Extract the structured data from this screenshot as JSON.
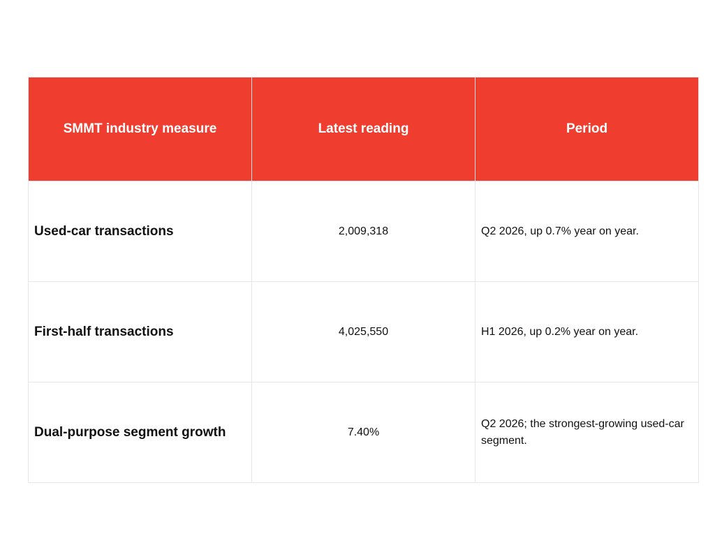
{
  "table": {
    "headers": [
      "SMMT industry measure",
      "Latest reading",
      "Period"
    ],
    "rows": [
      {
        "measure": "Used-car transactions",
        "reading": "2,009,318",
        "period": "Q2 2026, up 0.7% year on year."
      },
      {
        "measure": "First-half transactions",
        "reading": "4,025,550",
        "period": "H1 2026, up 0.2% year on year."
      },
      {
        "measure": "Dual-purpose segment growth",
        "reading": "7.40%",
        "period": "Q2 2026; the strongest-growing used-car segment."
      }
    ]
  }
}
